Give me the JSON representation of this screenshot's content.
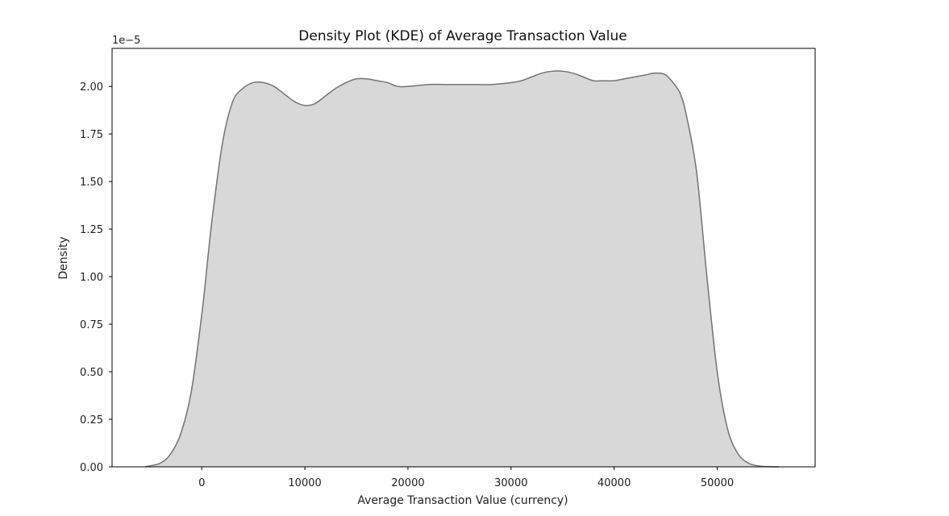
{
  "chart_data": {
    "type": "area",
    "title": "Density Plot (KDE) of Average Transaction Value",
    "xlabel": "Average Transaction Value (currency)",
    "ylabel": "Density",
    "y_offset_text": "1e−5",
    "xlim": [
      -8700,
      59500
    ],
    "ylim": [
      0,
      2.2
    ],
    "x_ticks": [
      0,
      10000,
      20000,
      30000,
      40000,
      50000
    ],
    "x_tick_labels": [
      "0",
      "10000",
      "20000",
      "30000",
      "40000",
      "50000"
    ],
    "y_ticks": [
      0,
      0.25,
      0.5,
      0.75,
      1.0,
      1.25,
      1.5,
      1.75,
      2.0
    ],
    "y_tick_labels": [
      "0.00",
      "0.25",
      "0.50",
      "0.75",
      "1.00",
      "1.25",
      "1.50",
      "1.75",
      "2.00"
    ],
    "grid": false,
    "fill_color": "#d8d8d8",
    "line_color": "#737373",
    "series": [
      {
        "x": [
          -5500,
          -4000,
          -3000,
          -2000,
          -1000,
          0,
          500,
          1000,
          2000,
          3000,
          4000,
          5000,
          6000,
          7000,
          8000,
          9000,
          10000,
          11000,
          12000,
          13000,
          14000,
          15000,
          16000,
          17000,
          18000,
          19000,
          20000,
          22000,
          24000,
          26000,
          28000,
          30000,
          31000,
          32000,
          33000,
          34000,
          35000,
          36000,
          37000,
          38000,
          39000,
          40000,
          41000,
          42000,
          43000,
          44000,
          45000,
          46000,
          46500,
          47000,
          48000,
          49000,
          50000,
          51000,
          52000,
          53000,
          54000,
          55000,
          56000
        ],
        "y": [
          0.0,
          0.02,
          0.07,
          0.18,
          0.4,
          0.8,
          1.05,
          1.3,
          1.7,
          1.92,
          1.99,
          2.02,
          2.02,
          2.0,
          1.96,
          1.92,
          1.9,
          1.91,
          1.95,
          1.99,
          2.02,
          2.04,
          2.04,
          2.03,
          2.02,
          2.0,
          2.0,
          2.01,
          2.01,
          2.01,
          2.01,
          2.02,
          2.03,
          2.05,
          2.07,
          2.08,
          2.08,
          2.07,
          2.05,
          2.03,
          2.03,
          2.03,
          2.04,
          2.05,
          2.06,
          2.07,
          2.06,
          2.0,
          1.95,
          1.85,
          1.55,
          1.0,
          0.5,
          0.2,
          0.07,
          0.02,
          0.005,
          0.001,
          0.0
        ]
      }
    ]
  }
}
